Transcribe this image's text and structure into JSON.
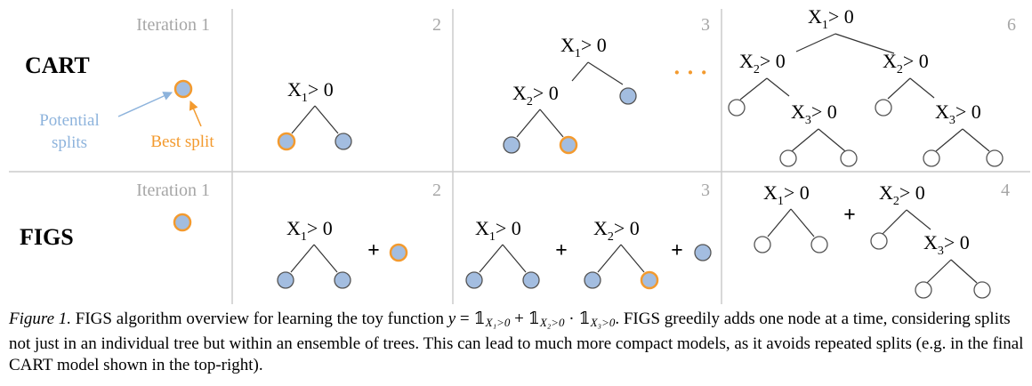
{
  "rows": [
    {
      "label": "CART",
      "panels": [
        {
          "iteration": "Iteration 1"
        },
        {
          "iteration": "2"
        },
        {
          "iteration": "3"
        },
        {
          "iteration": "6"
        }
      ]
    },
    {
      "label": "FIGS",
      "panels": [
        {
          "iteration": "Iteration 1"
        },
        {
          "iteration": "2"
        },
        {
          "iteration": "3"
        },
        {
          "iteration": "4"
        }
      ]
    }
  ],
  "annotations": {
    "potential_line1": "Potential",
    "potential_line2": "splits",
    "best_split": "Best split",
    "ellipsis": "· · ·"
  },
  "split_text": {
    "x1": {
      "var": "X",
      "sub": "1",
      "cond": "> 0"
    },
    "x2": {
      "var": "X",
      "sub": "2",
      "cond": "> 0"
    },
    "x3": {
      "var": "X",
      "sub": "3",
      "cond": "> 0"
    }
  },
  "plus": "+",
  "colors": {
    "potential_node": "#a3bde0",
    "best_node": "#f39a2e",
    "node_stroke": "#555555",
    "empty_node": "#ffffff",
    "iteration_text": "#a6a6a6",
    "potential_label": "#8db3dc",
    "best_label": "#f39a2e",
    "divider": "#cccccc"
  },
  "caption": {
    "figure_label": "Figure 1.",
    "text_before_math": " FIGS algorithm overview for learning the toy function ",
    "math_y": "y",
    "math_eq": " = ",
    "indicator": "𝟙",
    "term1_sub": "X₁>0",
    "math_plus": " + ",
    "term2_sub": "X₂>0",
    "math_dot": " · ",
    "term3_sub": "X₃>0",
    "text_after_math": ". FIGS greedily adds one node at a time, considering splits not just in an individual tree but within an ensemble of trees. This can lead to much more compact models, as it avoids repeated splits (e.g. in the final CART model shown in the top-right)."
  }
}
